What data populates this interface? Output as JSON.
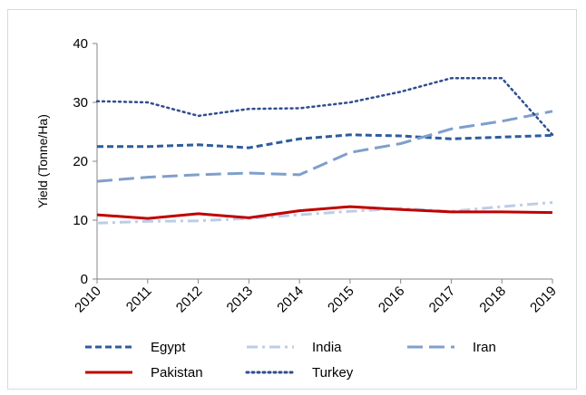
{
  "chart_data": {
    "type": "line",
    "title": "",
    "xlabel": "",
    "ylabel": "Yield (Tonne/Ha)",
    "x": [
      "2010",
      "2011",
      "2012",
      "2013",
      "2014",
      "2015",
      "2016",
      "2017",
      "2018",
      "2019"
    ],
    "ylim": [
      0,
      40
    ],
    "yticks": [
      0,
      10,
      20,
      30,
      40
    ],
    "grid": false,
    "legend_position": "bottom",
    "series": [
      {
        "name": "Egypt",
        "color": "#2E5C9E",
        "dash": "dashed",
        "values": [
          22.5,
          22.5,
          22.8,
          22.3,
          23.8,
          24.5,
          24.3,
          23.8,
          24.1,
          24.4
        ]
      },
      {
        "name": "India",
        "color": "#BCCDE6",
        "dash": "dash-dot",
        "values": [
          9.5,
          9.8,
          9.9,
          10.3,
          10.9,
          11.5,
          12.0,
          11.5,
          12.3,
          13.0
        ]
      },
      {
        "name": "Iran",
        "color": "#7F9FCC",
        "dash": "long-dash",
        "values": [
          16.6,
          17.3,
          17.7,
          18.0,
          17.7,
          21.5,
          23.0,
          25.5,
          26.8,
          28.5
        ]
      },
      {
        "name": "Pakistan",
        "color": "#C00000",
        "dash": "solid",
        "values": [
          10.9,
          10.3,
          11.1,
          10.4,
          11.6,
          12.3,
          11.8,
          11.4,
          11.4,
          11.3
        ]
      },
      {
        "name": "Turkey",
        "color": "#2E4E8F",
        "dash": "dotted",
        "values": [
          30.2,
          30.0,
          27.7,
          28.9,
          29.0,
          30.0,
          31.8,
          34.1,
          34.1,
          24.5
        ]
      }
    ]
  }
}
